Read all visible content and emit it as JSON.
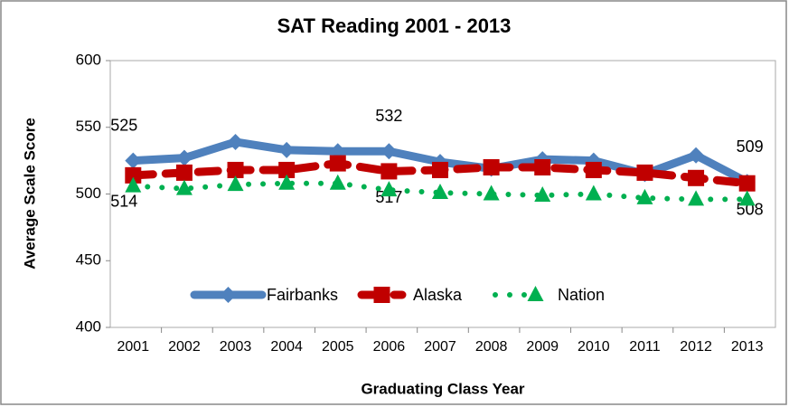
{
  "chart_data": {
    "type": "line",
    "title": "SAT Reading 2001 - 2013",
    "y_label": "Average Scale Score",
    "x_label": "Graduating Class Year",
    "categories": [
      "2001",
      "2002",
      "2003",
      "2004",
      "2005",
      "2006",
      "2007",
      "2008",
      "2009",
      "2010",
      "2011",
      "2012",
      "2013"
    ],
    "series": [
      {
        "name": "Fairbanks",
        "color": "#4f81bd",
        "marker": "diamond",
        "style": "solid",
        "values": [
          525,
          527,
          539,
          533,
          532,
          532,
          524,
          519,
          526,
          525,
          515,
          529,
          509
        ],
        "data_labels": [
          0,
          5,
          12
        ],
        "label_side": "above"
      },
      {
        "name": "Alaska",
        "color": "#c00000",
        "marker": "square",
        "style": "dashed",
        "values": [
          514,
          516,
          518,
          518,
          523,
          517,
          518,
          520,
          520,
          518,
          516,
          512,
          508
        ],
        "data_labels": [
          0,
          5,
          12
        ],
        "label_side": "below"
      },
      {
        "name": "Nation",
        "color": "#00b050",
        "marker": "triangle",
        "style": "dotted",
        "values": [
          506,
          504,
          507,
          508,
          508,
          503,
          501,
          500,
          499,
          500,
          497,
          496,
          496
        ]
      }
    ],
    "ylim": [
      400,
      600
    ],
    "yticks": [
      400,
      450,
      500,
      550,
      600
    ],
    "grid": false,
    "legend": "bottom"
  }
}
